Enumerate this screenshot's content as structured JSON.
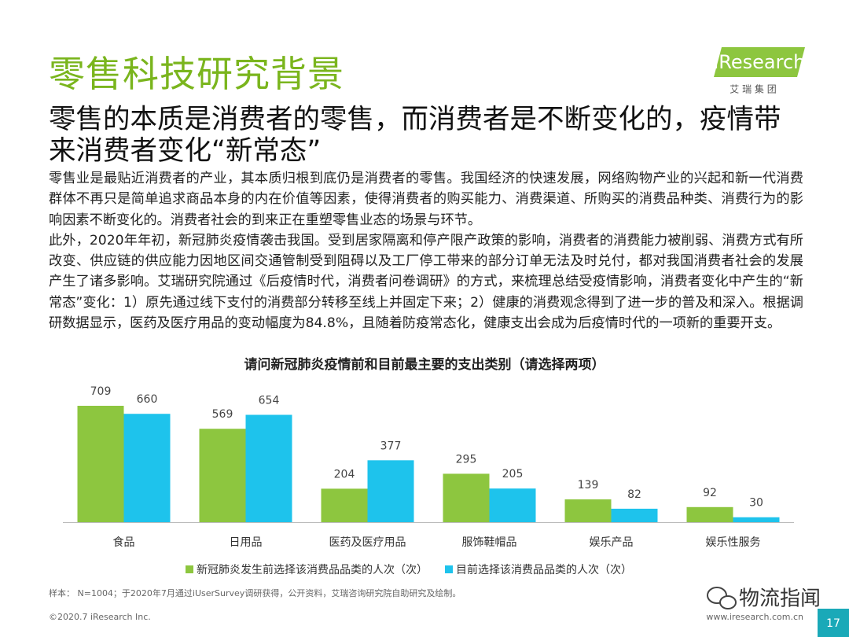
{
  "header": {
    "title": "零售科技研究背景",
    "logo": "iResearch",
    "logo_sub": "艾 瑞 集 团"
  },
  "subtitle": "零售的本质是消费者的零售，而消费者是不断变化的，疫情带来消费者变化“新常态”",
  "body": [
    "零售业是最贴近消费者的产业，其本质归根到底仍是消费者的零售。我国经济的快速发展，网络购物产业的兴起和新一代消费群体不再只是简单追求商品本身的内在价值等因素，使得消费者的购买能力、消费渠道、所购买的消费品种类、消费行为的影响因素不断变化的。消费者社会的到来正在重塑零售业态的场景与环节。",
    "此外，2020年年初，新冠肺炎疫情袭击我国。受到居家隔离和停产限产政策的影响，消费者的消费能力被削弱、消费方式有所改变、供应链的供应能力因地区间交通管制受到阻碍以及工厂停工带来的部分订单无法及时兑付，都对我国消费者社会的发展产生了诸多影响。艾瑞研究院通过《后疫情时代，消费者问卷调研》的方式，来梳理总结受疫情影响，消费者变化中产生的“新常态”变化：1）原先通过线下支付的消费部分转移至线上并固定下来；2）健康的消费观念得到了进一步的普及和深入。根据调研数据显示，医药及医疗用品的变动幅度为84.8%，且随着防疫常态化，健康支出会成为后疫情时代的一项新的重要开支。"
  ],
  "chart_data": {
    "type": "bar",
    "title": "请问新冠肺炎疫情前和目前最主要的支出类别（请选择两项）",
    "categories": [
      "食品",
      "日用品",
      "医药及医疗用品",
      "服饰鞋帽品",
      "娱乐产品",
      "娱乐性服务"
    ],
    "series": [
      {
        "name": "新冠肺炎发生前选择该消费品品类的人次（次）",
        "color": "#8dc63f",
        "values": [
          709,
          569,
          204,
          295,
          139,
          92
        ]
      },
      {
        "name": "目前选择该消费品品类的人次（次）",
        "color": "#1ec3ec",
        "values": [
          660,
          654,
          377,
          205,
          82,
          30
        ]
      }
    ]
  },
  "footer": {
    "note": "样本： N=1004；于2020年7月通过iUserSurvey调研获得，公开资料，艾瑞咨询研究院自助研究及绘制。",
    "copyright": "©2020.7 iResearch Inc.",
    "website": "www.iresearch.com.cn",
    "page": "17",
    "watermark": "物流指闻"
  }
}
